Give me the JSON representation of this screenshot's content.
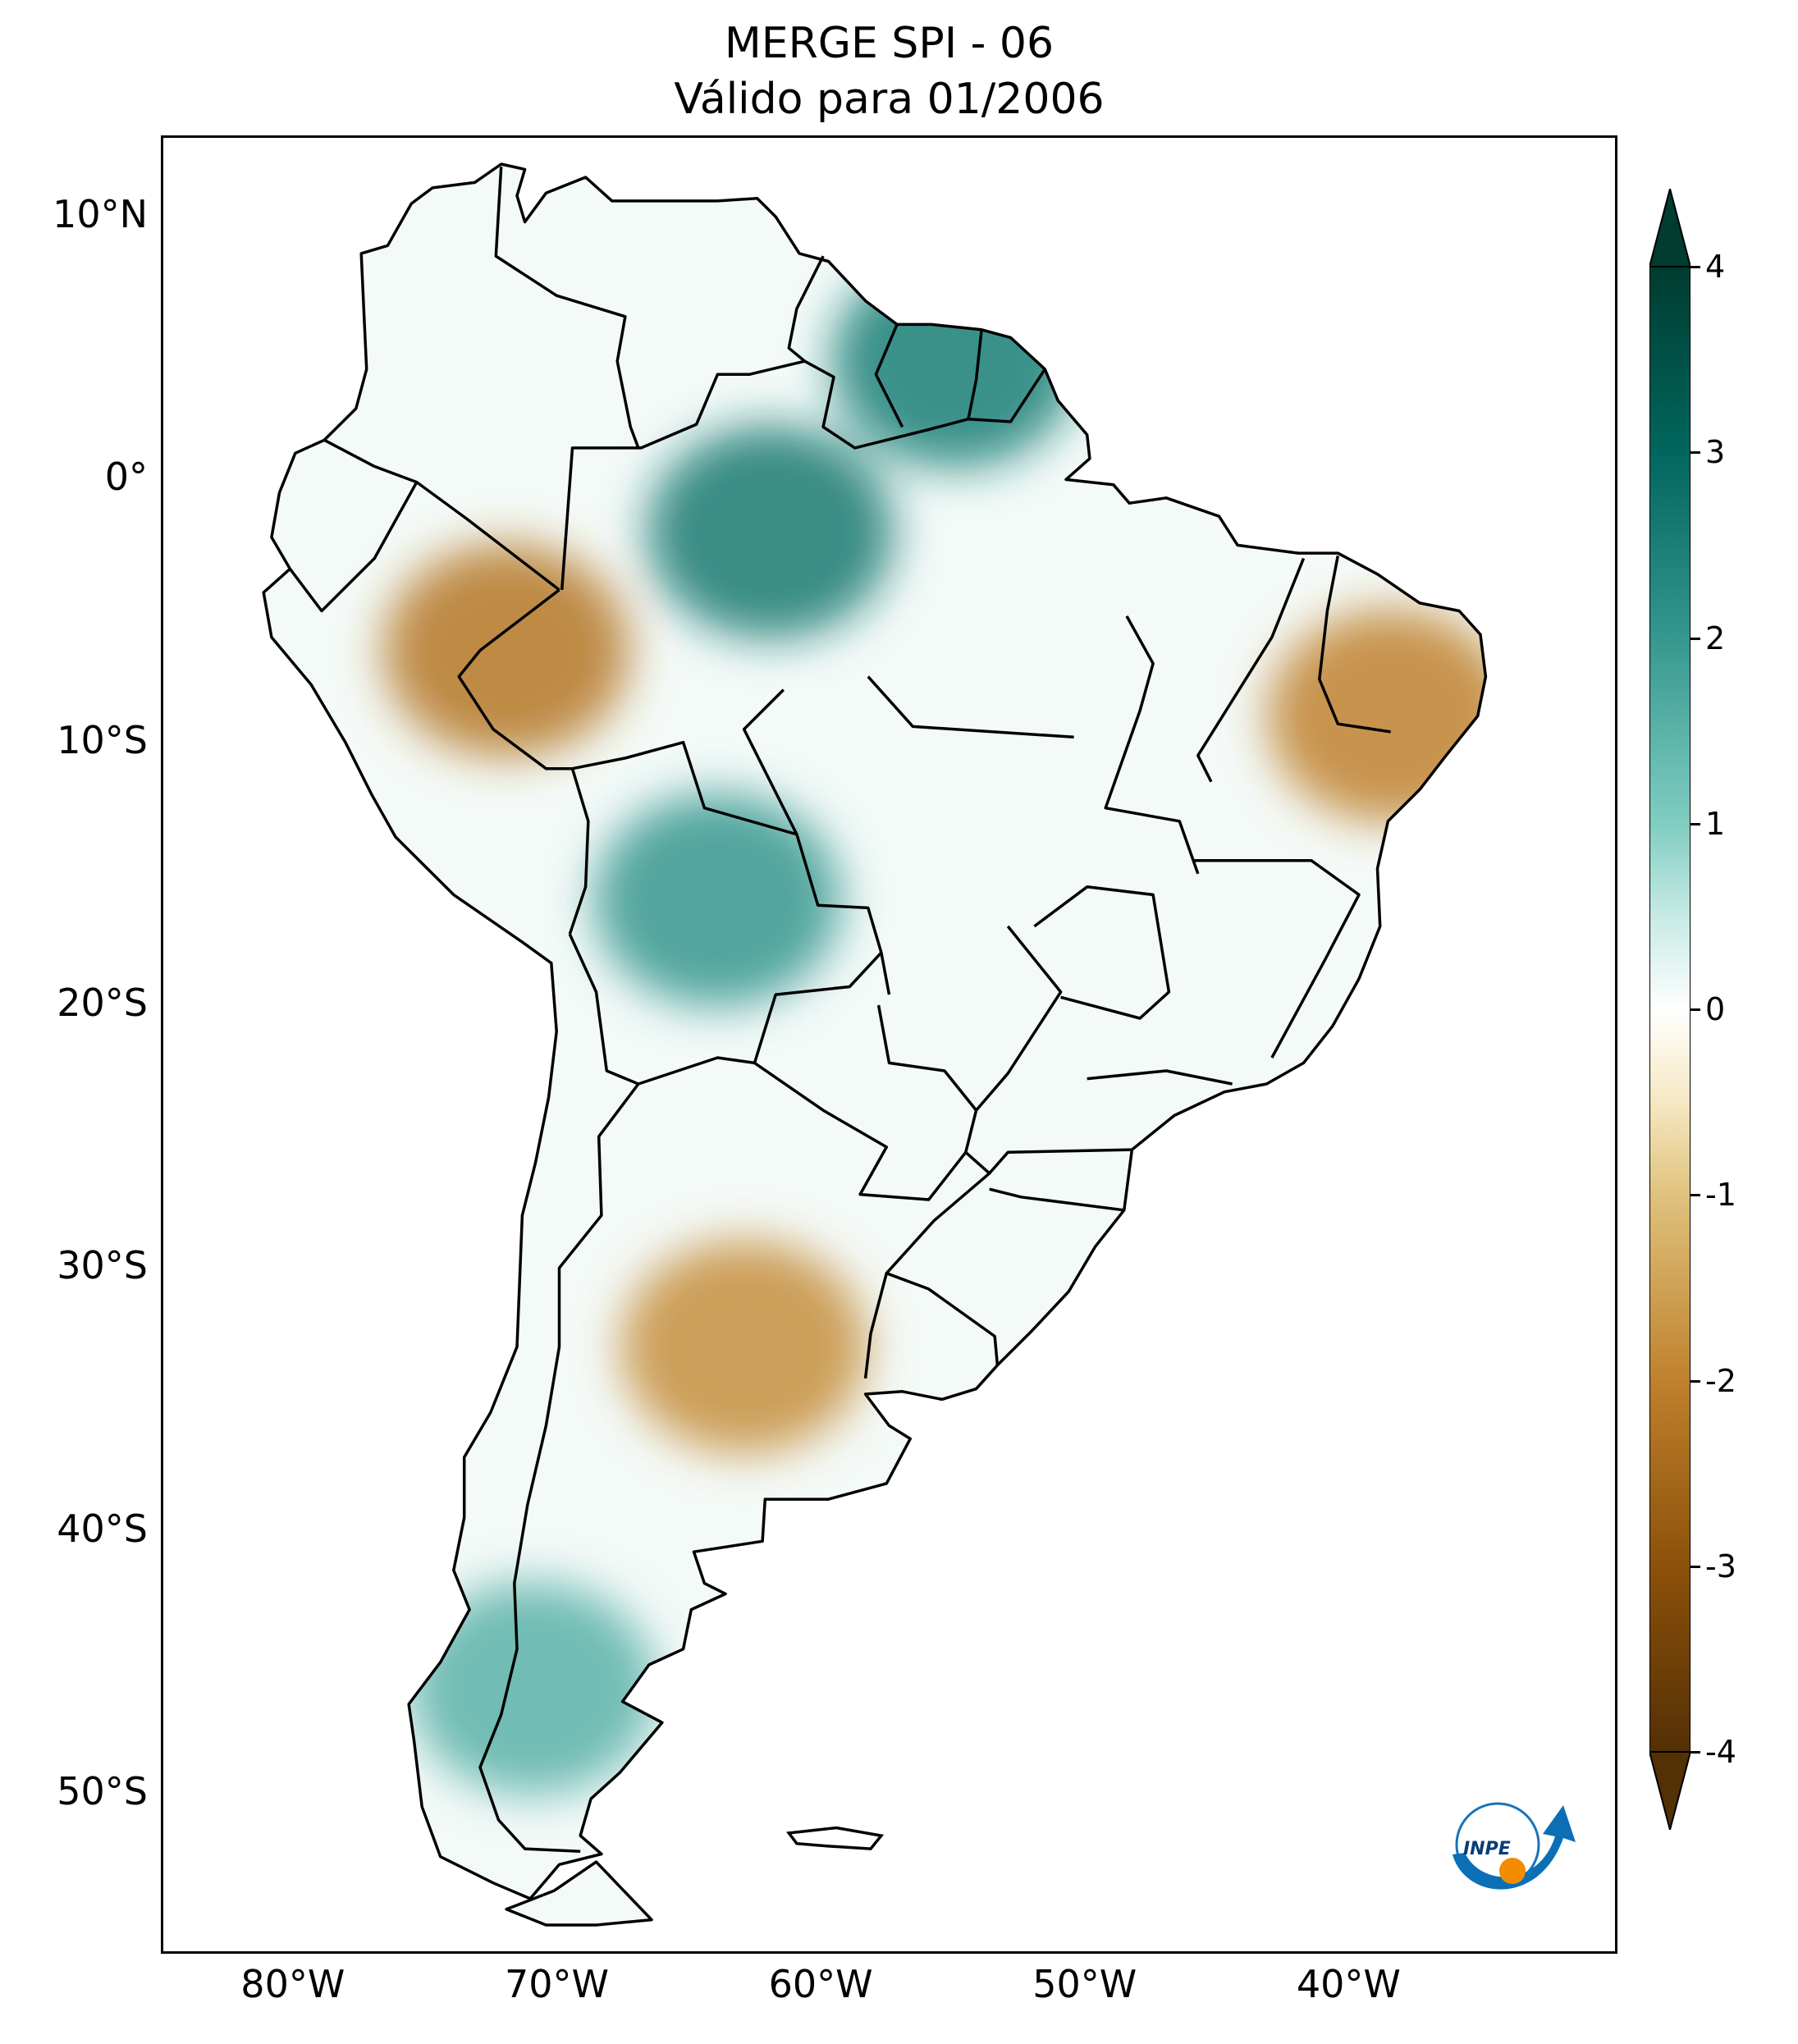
{
  "title": {
    "line1": "MERGE   SPI - 06",
    "line2": "Válido para 01/2006"
  },
  "map": {
    "type": "choropleth",
    "region": "South America",
    "lon_range": [
      -85,
      -30
    ],
    "lat_range": [
      -56,
      13
    ],
    "lat_ticks": [
      {
        "value": 10,
        "label": "10°N"
      },
      {
        "value": 0,
        "label": "0°"
      },
      {
        "value": -10,
        "label": "10°S"
      },
      {
        "value": -20,
        "label": "20°S"
      },
      {
        "value": -30,
        "label": "30°S"
      },
      {
        "value": -40,
        "label": "40°S"
      },
      {
        "value": -50,
        "label": "50°S"
      }
    ],
    "lon_ticks": [
      {
        "value": -80,
        "label": "80°W"
      },
      {
        "value": -70,
        "label": "70°W"
      },
      {
        "value": -60,
        "label": "60°W"
      },
      {
        "value": -50,
        "label": "50°W"
      },
      {
        "value": -40,
        "label": "40°W"
      }
    ],
    "grid": false
  },
  "colorbar": {
    "min": -4,
    "max": 4,
    "extend": "both",
    "colormap": "BrBG",
    "ticks": [
      {
        "value": 4,
        "label": "4"
      },
      {
        "value": 3,
        "label": "3"
      },
      {
        "value": 2,
        "label": "2"
      },
      {
        "value": 1,
        "label": "1"
      },
      {
        "value": 0,
        "label": "0"
      },
      {
        "value": -1,
        "label": "-1"
      },
      {
        "value": -2,
        "label": "-2"
      },
      {
        "value": -3,
        "label": "-3"
      },
      {
        "value": -4,
        "label": "-4"
      }
    ],
    "colors": {
      "neg4": "#543005",
      "neg3": "#8c510a",
      "neg2": "#bf812d",
      "neg1": "#dfc27d",
      "neg05": "#f6e8c3",
      "zero": "#ffffff",
      "pos05": "#c7eae5",
      "pos1": "#80cdc1",
      "pos2": "#35978f",
      "pos3": "#01665e",
      "pos4": "#003c30"
    }
  },
  "anomalies": [
    {
      "name": "northeast-brazil-dry",
      "lon": -38.5,
      "lat": -9,
      "spi": -2.0
    },
    {
      "name": "amazon-west-dry",
      "lon": -72,
      "lat": -6.5,
      "spi": -2.2
    },
    {
      "name": "argentina-center-dry",
      "lon": -63,
      "lat": -33,
      "spi": -1.8
    },
    {
      "name": "guiana-wet",
      "lon": -55,
      "lat": 4.5,
      "spi": 2.5
    },
    {
      "name": "amazon-north-wet",
      "lon": -62,
      "lat": -2,
      "spi": 2.6
    },
    {
      "name": "bolivia-wet",
      "lon": -64,
      "lat": -16,
      "spi": 2.0
    },
    {
      "name": "patagonia-wet",
      "lon": -71,
      "lat": -46,
      "spi": 1.5
    }
  ],
  "logo": {
    "text": "INPE"
  }
}
